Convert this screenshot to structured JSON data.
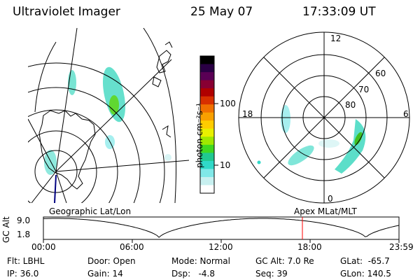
{
  "header": {
    "title": "Ultraviolet Imager",
    "date": "25 May 07",
    "time": "17:33:09 UT"
  },
  "colorbar": {
    "unit_label": "photon cm⁻²s⁻¹",
    "ticks": [
      "100",
      "10"
    ],
    "colors": [
      "#000000",
      "#2a0044",
      "#5a0055",
      "#880033",
      "#b00000",
      "#d83000",
      "#f07000",
      "#f8a000",
      "#ffcc00",
      "#e8f000",
      "#a0e800",
      "#40d820",
      "#20c890",
      "#30d8c8",
      "#80e8e8",
      "#c8f0f0",
      "#ffffff"
    ]
  },
  "polar_plot": {
    "mlt_labels": [
      "12",
      "18",
      "6",
      "0"
    ],
    "lat_labels": [
      "60",
      "70",
      "80"
    ]
  },
  "timeline": {
    "y_axis_label": "GC Alt",
    "y_ticks": [
      "9.0",
      "1.8"
    ],
    "left_caption": "Geographic Lat/Lon",
    "right_caption": "Apex MLat/MLT",
    "x_ticks": [
      "00:00",
      "06:00",
      "12:00",
      "18:00",
      "23:59"
    ],
    "marker_time": "17:33:09",
    "marker_color": "#ff0000"
  },
  "info": {
    "filter": "Flt: LBHL",
    "ip": "IP: 36.0",
    "door": "Door: Open",
    "gain": "Gain: 14",
    "mode": "Mode: Normal",
    "dsp": "Dsp:   -4.8",
    "gc_alt": "GC Alt: 7.0 Re",
    "seq": "Seq: 39",
    "glat": "GLat:  -65.7",
    "glon": "GLon: 140.5"
  }
}
